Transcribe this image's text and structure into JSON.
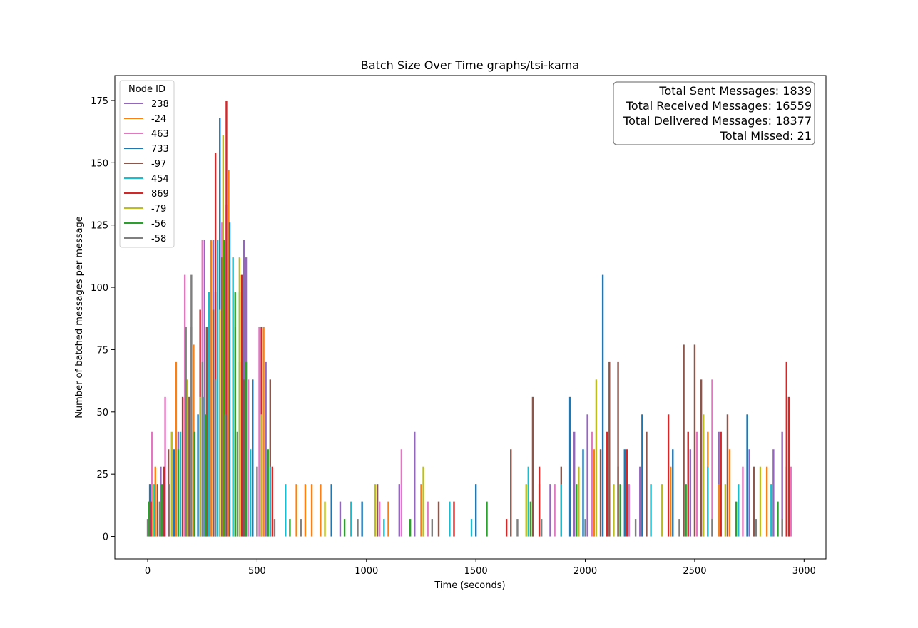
{
  "chart_data": {
    "type": "bar",
    "title": "Batch Size Over Time graphs/tsi-kama",
    "xlabel": "Time (seconds)",
    "ylabel": "Number of batched messages per message",
    "xlim": [
      -150,
      3100
    ],
    "ylim": [
      -9,
      185
    ],
    "xticks": [
      0,
      500,
      1000,
      1500,
      2000,
      2500,
      3000
    ],
    "xtick_labels": [
      "0",
      "500",
      "1000",
      "1500",
      "2000",
      "2500",
      "3000"
    ],
    "yticks": [
      0,
      25,
      50,
      75,
      100,
      125,
      150,
      175
    ],
    "ytick_labels": [
      "0",
      "25",
      "50",
      "75",
      "100",
      "125",
      "150",
      "175"
    ],
    "grid": false,
    "legend": {
      "title": "Node ID",
      "placement": "top-left"
    },
    "stats_box": {
      "placement": "top-right",
      "lines": [
        "Total Sent Messages: 1839",
        "Total Received Messages: 16559",
        "Total Delivered Messages: 18377",
        "Total Missed: 21"
      ]
    },
    "series": [
      {
        "name": "238",
        "color": "#9467bd",
        "x": [
          60,
          140,
          260,
          300,
          440,
          450,
          540,
          880,
          1150,
          1220,
          1840,
          1950,
          2010,
          2250,
          2480,
          2610,
          2750,
          2860,
          2900
        ],
        "values": [
          28,
          42,
          119,
          119,
          119,
          112,
          70,
          14,
          21,
          42,
          21,
          42,
          49,
          28,
          35,
          42,
          35,
          35,
          42
        ]
      },
      {
        "name": "-24",
        "color": "#ff7f0e",
        "x": [
          35,
          130,
          210,
          290,
          330,
          370,
          480,
          530,
          680,
          720,
          750,
          790,
          1100,
          1250,
          1790,
          2040,
          2150,
          2390,
          2560,
          2610,
          2660,
          2830
        ],
        "values": [
          28,
          70,
          77,
          119,
          147,
          147,
          63,
          84,
          21,
          21,
          21,
          21,
          14,
          21,
          21,
          35,
          28,
          28,
          42,
          21,
          35,
          28
        ]
      },
      {
        "name": "463",
        "color": "#e377c2",
        "x": [
          20,
          80,
          170,
          250,
          280,
          340,
          360,
          460,
          510,
          1060,
          1160,
          1280,
          1860,
          2030,
          2200,
          2510,
          2580,
          2720,
          2940
        ],
        "values": [
          42,
          56,
          105,
          119,
          98,
          126,
          133,
          63,
          84,
          14,
          35,
          14,
          21,
          42,
          21,
          42,
          63,
          28,
          28
        ]
      },
      {
        "name": "733",
        "color": "#1f77b4",
        "x": [
          10,
          120,
          230,
          310,
          330,
          375,
          420,
          480,
          840,
          980,
          1500,
          1930,
          1990,
          2080,
          2180,
          2260,
          2400,
          2740,
          2920
        ],
        "values": [
          21,
          35,
          49,
          98,
          168,
          126,
          70,
          63,
          21,
          14,
          21,
          56,
          35,
          105,
          35,
          49,
          35,
          49,
          28
        ]
      },
      {
        "name": "-97",
        "color": "#8c564b",
        "x": [
          45,
          95,
          190,
          270,
          300,
          340,
          400,
          440,
          560,
          1050,
          1330,
          1660,
          1760,
          1890,
          2070,
          2110,
          2150,
          2280,
          2450,
          2500,
          2530,
          2650,
          2770
        ],
        "values": [
          21,
          35,
          56,
          84,
          91,
          112,
          84,
          63,
          63,
          21,
          14,
          35,
          56,
          28,
          35,
          70,
          70,
          42,
          77,
          77,
          63,
          49,
          28
        ]
      },
      {
        "name": "454",
        "color": "#17becf",
        "x": [
          30,
          150,
          200,
          255,
          280,
          320,
          390,
          420,
          470,
          560,
          630,
          930,
          1080,
          1380,
          1480,
          1740,
          1890,
          2100,
          2300,
          2560,
          2700,
          2850
        ],
        "values": [
          21,
          42,
          84,
          56,
          98,
          119,
          112,
          98,
          35,
          28,
          21,
          14,
          7,
          14,
          7,
          28,
          21,
          28,
          21,
          28,
          21,
          21
        ]
      },
      {
        "name": "869",
        "color": "#d62728",
        "x": [
          15,
          75,
          160,
          240,
          310,
          360,
          430,
          520,
          570,
          1400,
          1640,
          1790,
          2100,
          2190,
          2380,
          2470,
          2620,
          2920,
          2930
        ],
        "values": [
          14,
          28,
          56,
          91,
          154,
          175,
          105,
          84,
          28,
          14,
          7,
          28,
          42,
          35,
          49,
          42,
          42,
          70,
          56
        ]
      },
      {
        "name": "-79",
        "color": "#bcbd22",
        "x": [
          25,
          110,
          180,
          240,
          330,
          345,
          420,
          520,
          810,
          1040,
          1260,
          1730,
          1970,
          2050,
          2130,
          2350,
          2540,
          2640,
          2800
        ],
        "values": [
          21,
          42,
          63,
          56,
          91,
          161,
          112,
          49,
          14,
          21,
          28,
          21,
          28,
          63,
          21,
          21,
          49,
          21,
          28
        ]
      },
      {
        "name": "-56",
        "color": "#2ca02c",
        "x": [
          5,
          65,
          140,
          215,
          265,
          350,
          400,
          450,
          550,
          650,
          900,
          1200,
          1550,
          1750,
          1960,
          2160,
          2460,
          2690,
          2880
        ],
        "values": [
          14,
          21,
          35,
          42,
          49,
          119,
          98,
          70,
          35,
          7,
          7,
          7,
          14,
          14,
          21,
          21,
          21,
          14,
          14
        ]
      },
      {
        "name": "-58",
        "color": "#7f7f7f",
        "x": [
          0,
          55,
          100,
          175,
          200,
          250,
          310,
          355,
          410,
          500,
          580,
          700,
          960,
          1300,
          1690,
          1800,
          2000,
          2230,
          2430,
          2580,
          2780,
          2900
        ],
        "values": [
          7,
          14,
          21,
          84,
          105,
          70,
          63,
          49,
          42,
          28,
          7,
          7,
          7,
          7,
          7,
          7,
          7,
          7,
          7,
          7,
          7,
          7
        ]
      }
    ]
  }
}
